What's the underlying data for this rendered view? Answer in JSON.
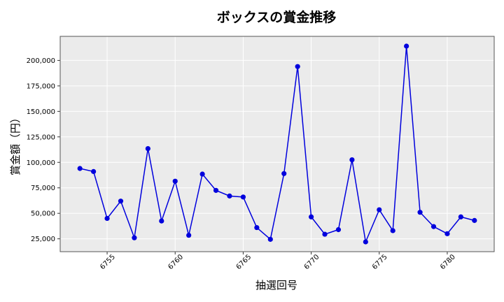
{
  "chart_data": {
    "type": "line",
    "title": "ボックスの賞金推移",
    "xlabel": "抽選回号",
    "ylabel": "賞金額（円）",
    "x": [
      6753,
      6754,
      6755,
      6756,
      6757,
      6758,
      6759,
      6760,
      6761,
      6762,
      6763,
      6764,
      6765,
      6766,
      6767,
      6768,
      6769,
      6770,
      6771,
      6772,
      6773,
      6774,
      6775,
      6776,
      6777,
      6778,
      6779,
      6780,
      6781,
      6782
    ],
    "series": [
      {
        "values": [
          94000,
          91000,
          45000,
          62000,
          26000,
          113500,
          42500,
          81500,
          28500,
          88500,
          72500,
          67000,
          66000,
          36000,
          24500,
          89000,
          194000,
          46500,
          29500,
          34000,
          102500,
          22000,
          53500,
          33000,
          214000,
          51000,
          37000,
          30000,
          46500,
          43000
        ],
        "color": "#0000dd"
      }
    ],
    "xticks": [
      "6755",
      "6760",
      "6765",
      "6770",
      "6775",
      "6780"
    ],
    "yticks": [
      "25,000",
      "50,000",
      "75,000",
      "100,000",
      "125,000",
      "150,000",
      "175,000",
      "200,000"
    ],
    "xlim": [
      6751.55,
      6783.45
    ],
    "ylim": [
      12400,
      223600
    ],
    "grid": true,
    "background": "#ebebeb"
  }
}
